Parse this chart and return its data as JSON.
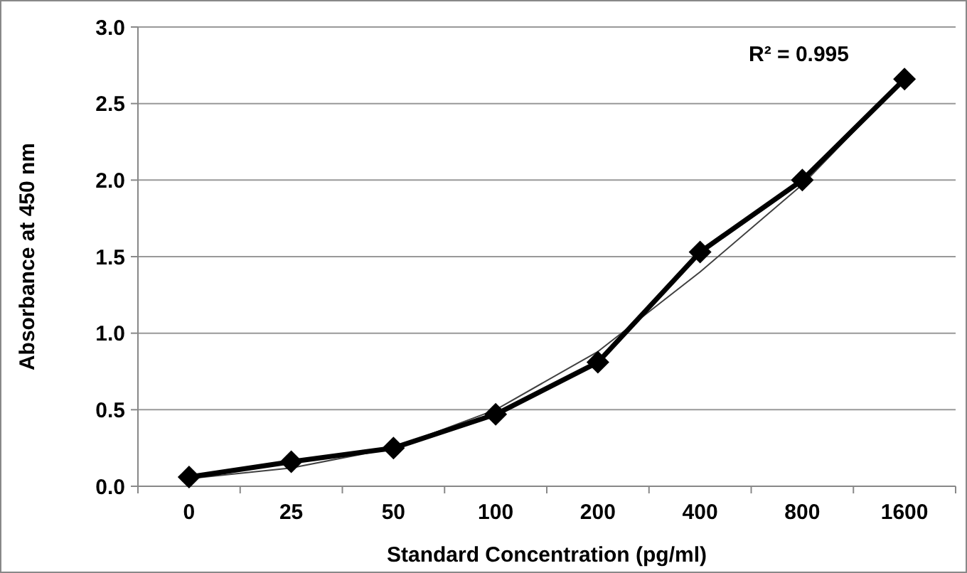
{
  "chart_data": {
    "type": "line",
    "xlabel": "Standard Concentration (pg/ml)",
    "ylabel": "Absorbance at 450 nm",
    "categories": [
      "0",
      "25",
      "50",
      "100",
      "200",
      "400",
      "800",
      "1600"
    ],
    "series": [
      {
        "color": "#000000",
        "values": [
          0.06,
          0.16,
          0.25,
          0.47,
          0.81,
          1.53,
          2.0,
          2.66
        ]
      },
      {
        "type": "line",
        "color": "#404040",
        "marker": "none",
        "values": [
          0.05,
          0.12,
          0.25,
          0.5,
          0.88,
          1.4,
          1.97,
          2.66
        ]
      }
    ],
    "ylim": [
      0,
      3
    ],
    "yticks": [
      {
        "value": 0,
        "label": "0.0"
      },
      {
        "value": 0.5,
        "label": "0.5"
      },
      {
        "value": 1,
        "label": "1.0"
      },
      {
        "value": 1.5,
        "label": "1.5"
      },
      {
        "value": 2,
        "label": "2.0"
      },
      {
        "value": 2.5,
        "label": "2.5"
      },
      {
        "value": 3,
        "label": "3.0"
      }
    ],
    "grid": "y",
    "marker": "diamond",
    "line_style": "solid",
    "annotations": [
      "R² = 0.995"
    ]
  }
}
